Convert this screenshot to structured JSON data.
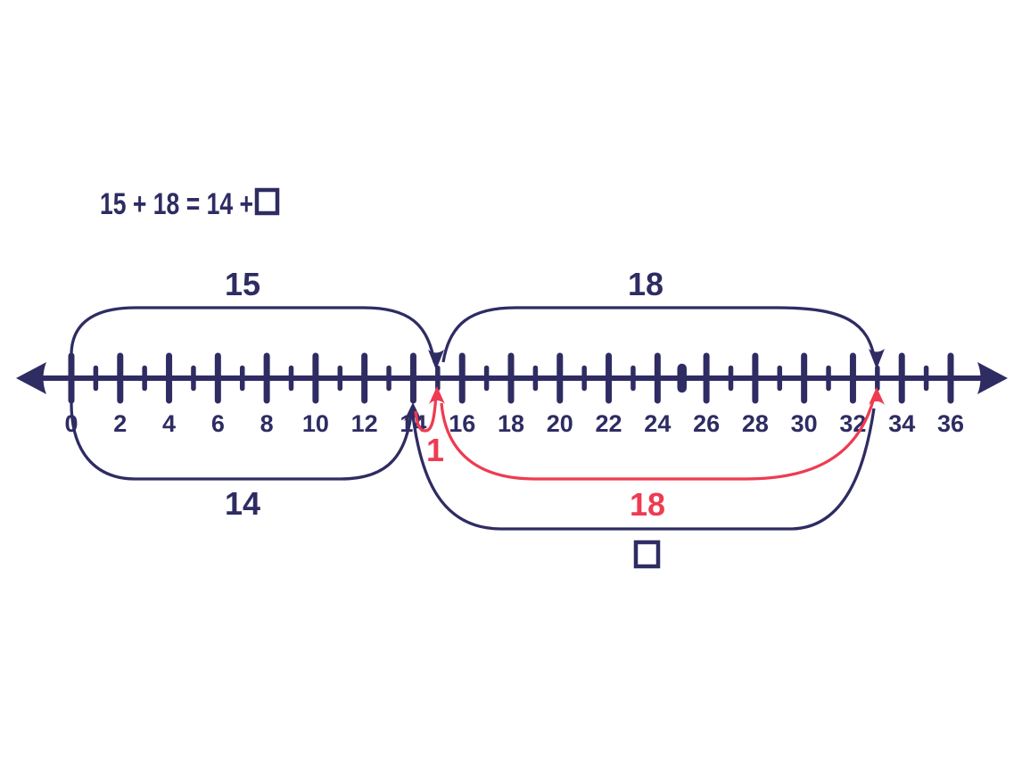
{
  "colors": {
    "navy": "#2e2c62",
    "red": "#ee3b51",
    "background": "#ffffff"
  },
  "equation": {
    "expression": "15 + 18 = 14 +",
    "missing_value_symbol": "□"
  },
  "number_line": {
    "min": 0,
    "max": 36,
    "minor_step": 1,
    "major_step": 2,
    "labels": [
      "0",
      "2",
      "4",
      "6",
      "8",
      "10",
      "12",
      "14",
      "16",
      "18",
      "20",
      "22",
      "24",
      "26",
      "28",
      "30",
      "32",
      "34",
      "36"
    ],
    "point_marker_value": 25,
    "arrow_both_ends": true
  },
  "arcs": {
    "top": [
      {
        "label": "15",
        "from": 0,
        "to": 15,
        "color": "#2e2c62"
      },
      {
        "label": "18",
        "from": 15,
        "to": 33,
        "color": "#2e2c62"
      }
    ],
    "bottom": [
      {
        "label": "14",
        "from": 0,
        "to": 14,
        "color": "#2e2c62"
      },
      {
        "label": "1",
        "from": 14,
        "to": 15,
        "color": "#ee3b51"
      },
      {
        "label": "18",
        "from": 15,
        "to": 33,
        "color": "#ee3b51"
      },
      {
        "label": "□",
        "from": 14,
        "to": 33,
        "color": "#2e2c62",
        "label_is_empty_box": true
      }
    ]
  }
}
